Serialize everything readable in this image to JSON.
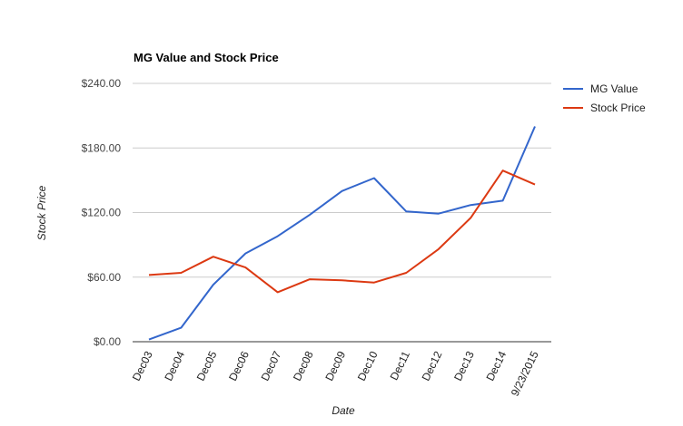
{
  "chart_data": {
    "type": "line",
    "title": "MG Value and Stock Price",
    "xlabel": "Date",
    "ylabel": "Stock Price",
    "categories": [
      "Dec03",
      "Dec04",
      "Dec05",
      "Dec06",
      "Dec07",
      "Dec08",
      "Dec09",
      "Dec10",
      "Dec11",
      "Dec12",
      "Dec13",
      "Dec14",
      "9/23/2015"
    ],
    "ylim": [
      0,
      240
    ],
    "yticks": [
      0,
      60,
      120,
      180,
      240
    ],
    "ytick_labels": [
      "$0.00",
      "$60.00",
      "$120.00",
      "$180.00",
      "$240.00"
    ],
    "grid": true,
    "legend_position": "right",
    "series": [
      {
        "name": "MG Value",
        "color": "#3366cc",
        "values": [
          2,
          13,
          53,
          82,
          98,
          118,
          140,
          152,
          121,
          119,
          127,
          131,
          200
        ]
      },
      {
        "name": "Stock Price",
        "color": "#dc3912",
        "values": [
          62,
          64,
          79,
          69,
          46,
          58,
          57,
          55,
          64,
          86,
          115,
          159,
          146
        ]
      }
    ]
  }
}
